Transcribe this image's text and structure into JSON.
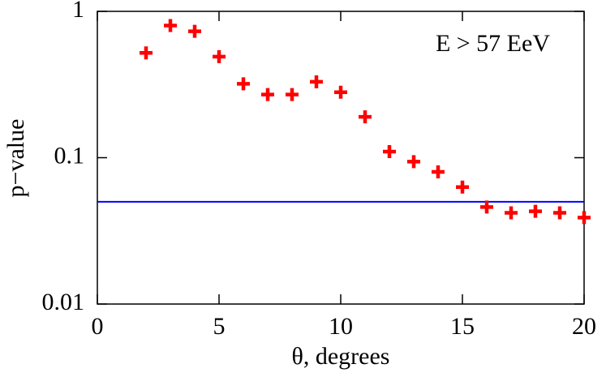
{
  "chart_data": {
    "type": "scatter",
    "x_label": "θ, degrees",
    "y_label": "p−value",
    "annotation": "E > 57 EeV",
    "x": [
      2,
      3,
      4,
      5,
      6,
      7,
      8,
      9,
      10,
      11,
      12,
      13,
      14,
      15,
      16,
      17,
      18,
      19,
      20
    ],
    "series": [
      {
        "color": "#ff0000",
        "values": [
          0.52,
          0.8,
          0.73,
          0.49,
          0.32,
          0.27,
          0.27,
          0.33,
          0.28,
          0.19,
          0.11,
          0.094,
          0.08,
          0.063,
          0.046,
          0.042,
          0.043,
          0.042,
          0.039
        ]
      }
    ],
    "hline": {
      "value": 0.05,
      "color": "#0000ff"
    },
    "xlim": [
      0,
      20
    ],
    "xticks": [
      0,
      5,
      10,
      15,
      20
    ],
    "ylim": [
      0.01,
      1
    ],
    "yticks": [
      0.01,
      0.1,
      1
    ],
    "ylog": true
  }
}
